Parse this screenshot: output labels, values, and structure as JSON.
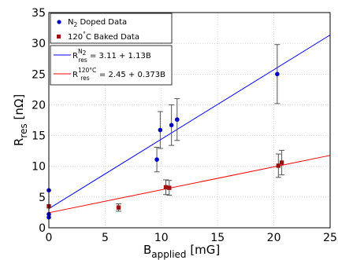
{
  "chart_data": {
    "type": "scatter",
    "xlabel": {
      "main": "B",
      "sub": "applied",
      "unit": " [mG]"
    },
    "ylabel": {
      "main": "R",
      "sub": "res",
      "unit": "  [nΩ]"
    },
    "xlim": [
      0,
      25
    ],
    "ylim": [
      0,
      35
    ],
    "xticks": [
      0,
      5,
      10,
      15,
      20,
      25
    ],
    "yticks": [
      0,
      5,
      10,
      15,
      20,
      25,
      30,
      35
    ],
    "grid": true,
    "legend_placement": "top-left",
    "series": [
      {
        "name": "N₂ Doped Data",
        "name_parts": {
          "a": "N",
          "sub": "2",
          "b": " Doped Data"
        },
        "marker": "circle",
        "color": "#0000c8",
        "points": [
          {
            "x": 0.0,
            "y": 6.1,
            "err": 0
          },
          {
            "x": 0.0,
            "y": 2.2,
            "err": 0
          },
          {
            "x": 0.0,
            "y": 1.7,
            "err": 0
          },
          {
            "x": 9.6,
            "y": 11.1,
            "err": 2.0
          },
          {
            "x": 9.9,
            "y": 15.9,
            "err": 3.0
          },
          {
            "x": 10.9,
            "y": 16.7,
            "err": 3.3
          },
          {
            "x": 11.4,
            "y": 17.6,
            "err": 3.4
          },
          {
            "x": 20.3,
            "y": 25.0,
            "err": 4.8
          }
        ]
      },
      {
        "name": "120°C Baked Data",
        "name_parts": {
          "a": "120",
          "sup": "°",
          "b": "C Baked Data"
        },
        "marker": "square",
        "color": "#a01010",
        "points": [
          {
            "x": 0.0,
            "y": 3.5,
            "err": 0
          },
          {
            "x": 6.2,
            "y": 3.3,
            "err": 0.6
          },
          {
            "x": 10.4,
            "y": 6.6,
            "err": 1.2
          },
          {
            "x": 10.7,
            "y": 6.5,
            "err": 1.2
          },
          {
            "x": 20.4,
            "y": 10.1,
            "err": 1.9
          },
          {
            "x": 20.7,
            "y": 10.6,
            "err": 2.0
          }
        ]
      }
    ],
    "fits": [
      {
        "label_parts": {
          "a": "R",
          "sup": "N",
          "supsub": "2",
          "sub": "res",
          "b": " = 3.11 + 1.13B"
        },
        "intercept": 3.11,
        "slope": 1.13,
        "color": "#0000ff"
      },
      {
        "label_parts": {
          "a": "R",
          "sup": "120°C",
          "sub": "res",
          "b": " = 2.45 + 0.373B"
        },
        "intercept": 2.45,
        "slope": 0.373,
        "color": "#ff0000"
      }
    ]
  }
}
